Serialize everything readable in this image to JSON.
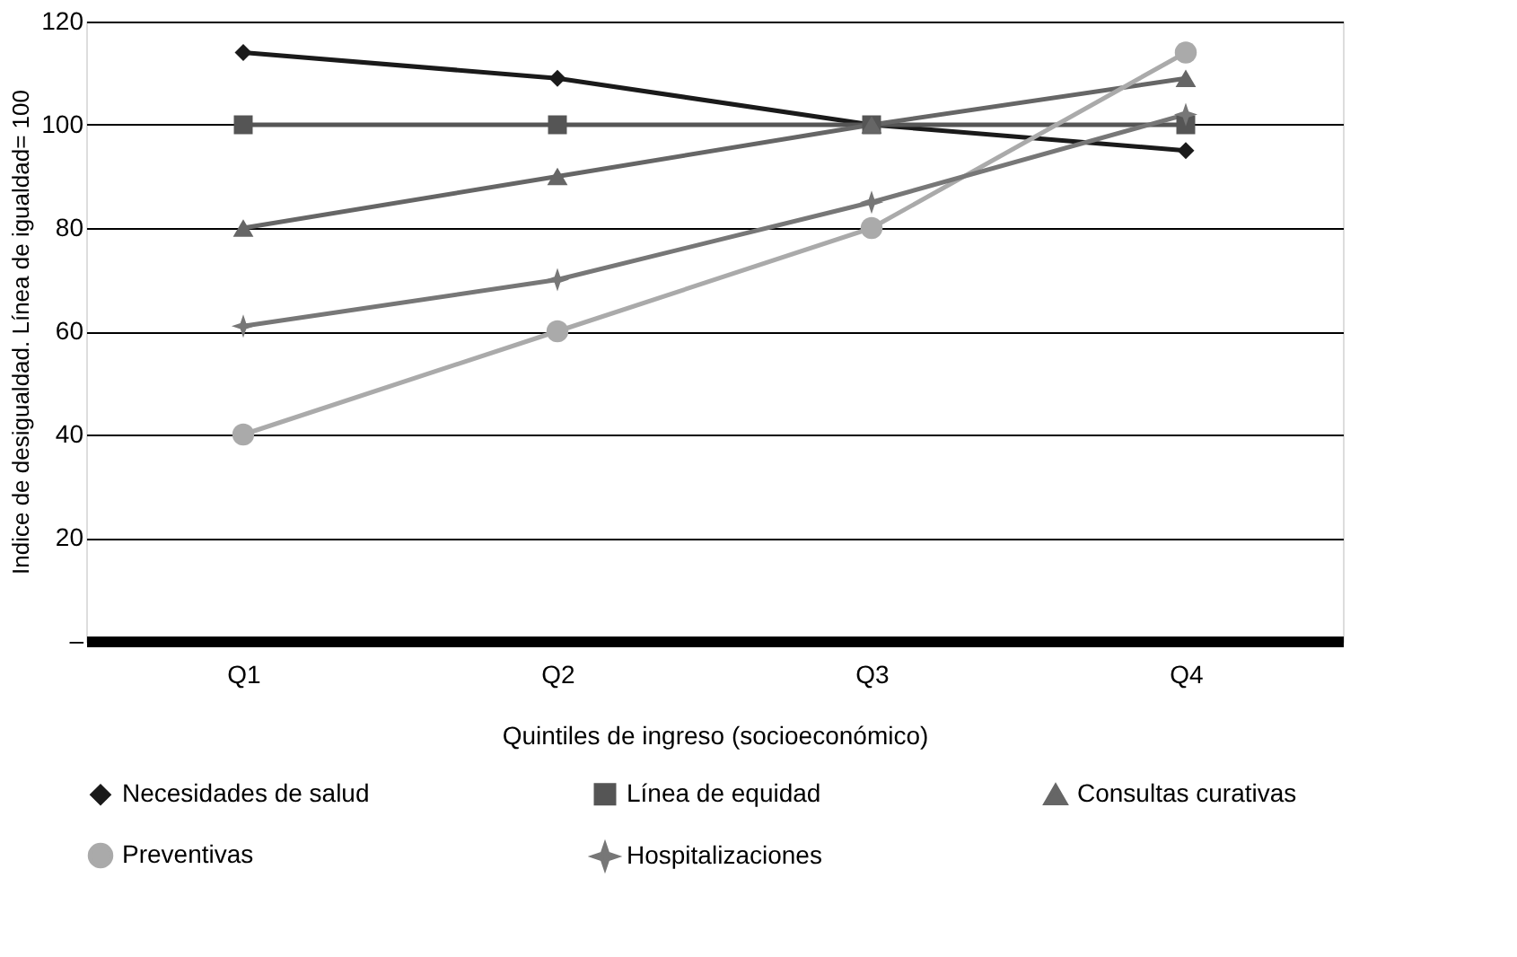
{
  "chart_data": {
    "type": "line",
    "xlabel": "Quintiles de ingreso (socioeconómico)",
    "ylabel": "Indice de desigualdad. Línea de igualdad= 100",
    "categories": [
      "Q1",
      "Q2",
      "Q3",
      "Q4"
    ],
    "ylim": [
      0,
      120
    ],
    "yticks": [
      {
        "value": 0,
        "label": "–"
      },
      20,
      40,
      60,
      80,
      100,
      120
    ],
    "grid": "y",
    "legend": "bottom",
    "series": [
      {
        "name": "Necesidades de salud",
        "color": "#1a1a1a",
        "marker": "diamond",
        "values": [
          114,
          109,
          100,
          95
        ]
      },
      {
        "name": "Línea de equidad",
        "color": "#555555",
        "marker": "square",
        "values": [
          100,
          100,
          100,
          100
        ]
      },
      {
        "name": "Consultas curativas",
        "color": "#666666",
        "marker": "triangle",
        "values": [
          80,
          90,
          100,
          109
        ]
      },
      {
        "name": "Preventivas",
        "color": "#aaaaaa",
        "marker": "circle",
        "values": [
          40,
          60,
          80,
          114
        ]
      },
      {
        "name": "Hospitalizaciones",
        "color": "#777777",
        "marker": "star",
        "values": [
          61,
          70,
          85,
          102
        ]
      }
    ]
  }
}
